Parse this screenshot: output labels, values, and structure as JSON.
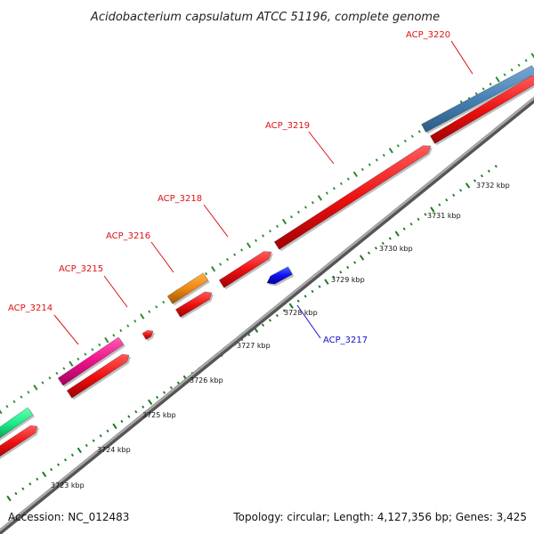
{
  "title": "Acidobacterium capsulatum ATCC 51196, complete genome",
  "footer": {
    "accession": "Accession: NC_012483",
    "summary": "Topology: circular; Length: 4,127,356 bp; Genes: 3,425"
  },
  "colors": {
    "forward_ticks": "#2e8b2e",
    "reverse_ticks": "#1a7a1a",
    "backbone": "#8c8c8c",
    "forward_label": "#dd1111",
    "reverse_label": "#1111cc"
  },
  "scale_ticks": [
    {
      "kbp": 3723,
      "label": "3723 kbp"
    },
    {
      "kbp": 3724,
      "label": "3724 kbp"
    },
    {
      "kbp": 3725,
      "label": "3725 kbp"
    },
    {
      "kbp": 3726,
      "label": "3726 kbp"
    },
    {
      "kbp": 3727,
      "label": "3727 kbp"
    },
    {
      "kbp": 3728,
      "label": "3728 kbp"
    },
    {
      "kbp": 3729,
      "label": "3729 kbp"
    },
    {
      "kbp": 3730,
      "label": "3730 kbp"
    },
    {
      "kbp": 3731,
      "label": "3731 kbp"
    },
    {
      "kbp": 3732,
      "label": "3732 kbp"
    }
  ],
  "genes": [
    {
      "name": "",
      "strand": "+",
      "color": "#18ec88"
    },
    {
      "name": "",
      "strand": "+",
      "color": "#ee1111"
    },
    {
      "name": "ACP_3214",
      "strand": "+",
      "color": "#ee1188"
    },
    {
      "name": "",
      "strand": "+",
      "color": "#ee1111"
    },
    {
      "name": "ACP_3215",
      "strand": "+",
      "color": "#ee1111"
    },
    {
      "name": "ACP_3216",
      "strand": "+",
      "color": "#ee8811"
    },
    {
      "name": "",
      "strand": "+",
      "color": "#ee1111"
    },
    {
      "name": "ACP_3218",
      "strand": "+",
      "color": "#ee1111"
    },
    {
      "name": "ACP_3219",
      "strand": "+",
      "color": "#ee1111"
    },
    {
      "name": "ACP_3220",
      "strand": "+",
      "color": "#4682b4"
    },
    {
      "name": "",
      "strand": "+",
      "color": "#ee1111"
    },
    {
      "name": "ACP_3217",
      "strand": "-",
      "color": "#1111ee"
    }
  ]
}
